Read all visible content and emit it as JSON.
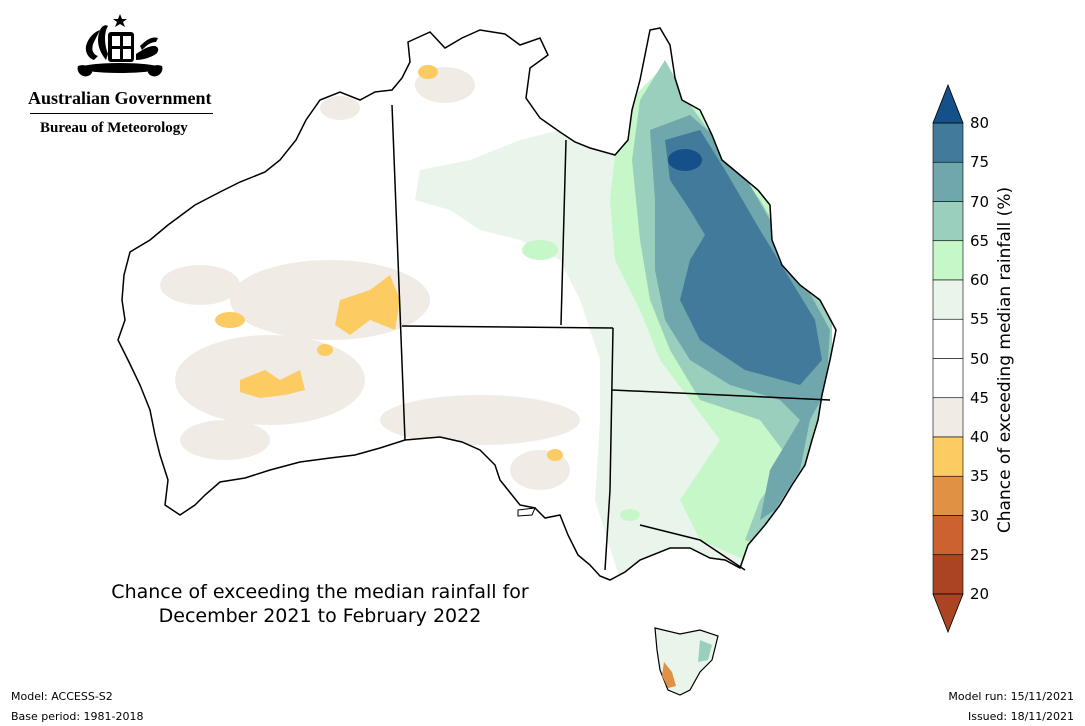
{
  "header": {
    "gov_name": "Australian Government",
    "bureau_name": "Bureau of Meteorology"
  },
  "map": {
    "title_line1": "Chance of exceeding the median rainfall for",
    "title_line2": "December 2021 to February 2022",
    "region": "Australia",
    "state_borders": true
  },
  "colorbar": {
    "label": "Chance of exceeding median rainfall (%)",
    "ticks": [
      "80",
      "75",
      "70",
      "65",
      "60",
      "55",
      "50",
      "45",
      "40",
      "35",
      "30",
      "25",
      "20"
    ],
    "colors": [
      "#15508a",
      "#417a9b",
      "#6fa7ad",
      "#9bcfbd",
      "#c6f7c9",
      "#e9f5ea",
      "#ffffff",
      "#ffffff",
      "#f0ebe5",
      "#fccb62",
      "#e09143",
      "#cd6231",
      "#ab4423"
    ],
    "top_arrow_color": "#15508a",
    "bottom_arrow_color": "#ab4423"
  },
  "footer": {
    "model": "Model: ACCESS-S2",
    "base_period": "Base period: 1981-2018",
    "model_run": "Model run: 15/11/2021",
    "issued": "Issued: 18/11/2021"
  }
}
